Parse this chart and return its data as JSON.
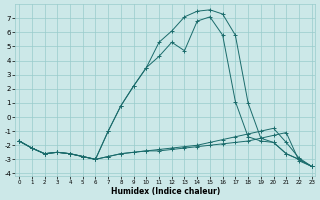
{
  "xlabel": "Humidex (Indice chaleur)",
  "background_color": "#cce8e8",
  "grid_color": "#99cccc",
  "line_color": "#1a6b6b",
  "x_ticks": [
    0,
    1,
    2,
    3,
    4,
    5,
    6,
    7,
    8,
    9,
    10,
    11,
    12,
    13,
    14,
    15,
    16,
    17,
    18,
    19,
    20,
    21,
    22,
    23
  ],
  "y_ticks": [
    -4,
    -3,
    -2,
    -1,
    0,
    1,
    2,
    3,
    4,
    5,
    6,
    7
  ],
  "xlim": [
    -0.3,
    23.3
  ],
  "ylim": [
    -4.2,
    8.0
  ],
  "series": [
    {
      "x": [
        0,
        1,
        2,
        3,
        4,
        5,
        6,
        7,
        8,
        9,
        10,
        11,
        12,
        13,
        14,
        15,
        16,
        17,
        18,
        19,
        20,
        21,
        22,
        23
      ],
      "y": [
        -1.7,
        -2.2,
        -2.6,
        -2.5,
        -2.6,
        -2.8,
        -3.0,
        -2.8,
        -2.6,
        -2.5,
        -2.4,
        -2.4,
        -2.3,
        -2.2,
        -2.1,
        -2.0,
        -1.9,
        -1.8,
        -1.7,
        -1.5,
        -1.3,
        -1.1,
        -3.1,
        -3.5
      ]
    },
    {
      "x": [
        0,
        1,
        2,
        3,
        4,
        5,
        6,
        7,
        8,
        9,
        10,
        11,
        12,
        13,
        14,
        15,
        16,
        17,
        18,
        19,
        20,
        21,
        22,
        23
      ],
      "y": [
        -1.7,
        -2.2,
        -2.6,
        -2.5,
        -2.6,
        -2.8,
        -3.0,
        -2.8,
        -2.6,
        -2.5,
        -2.4,
        -2.3,
        -2.2,
        -2.1,
        -2.0,
        -1.8,
        -1.6,
        -1.4,
        -1.2,
        -1.0,
        -0.8,
        -1.8,
        -2.9,
        -3.5
      ]
    },
    {
      "x": [
        0,
        1,
        2,
        3,
        4,
        5,
        6,
        7,
        8,
        9,
        10,
        11,
        12,
        13,
        14,
        15,
        16,
        17,
        18,
        19,
        20,
        21,
        22,
        23
      ],
      "y": [
        -1.7,
        -2.2,
        -2.6,
        -2.5,
        -2.6,
        -2.8,
        -3.0,
        -1.0,
        0.8,
        2.2,
        3.5,
        4.3,
        5.3,
        4.7,
        6.8,
        7.1,
        5.8,
        1.1,
        -1.4,
        -1.7,
        -1.8,
        -2.6,
        -3.0,
        -3.5
      ]
    },
    {
      "x": [
        0,
        1,
        2,
        3,
        4,
        5,
        6,
        7,
        8,
        9,
        10,
        11,
        12,
        13,
        14,
        15,
        16,
        17,
        18,
        19,
        20,
        21,
        22,
        23
      ],
      "y": [
        -1.7,
        -2.2,
        -2.6,
        -2.5,
        -2.6,
        -2.8,
        -3.0,
        -1.0,
        0.8,
        2.2,
        3.5,
        5.3,
        6.1,
        7.1,
        7.5,
        7.6,
        7.3,
        5.8,
        1.0,
        -1.5,
        -1.8,
        -2.6,
        -3.0,
        -3.5
      ]
    }
  ]
}
